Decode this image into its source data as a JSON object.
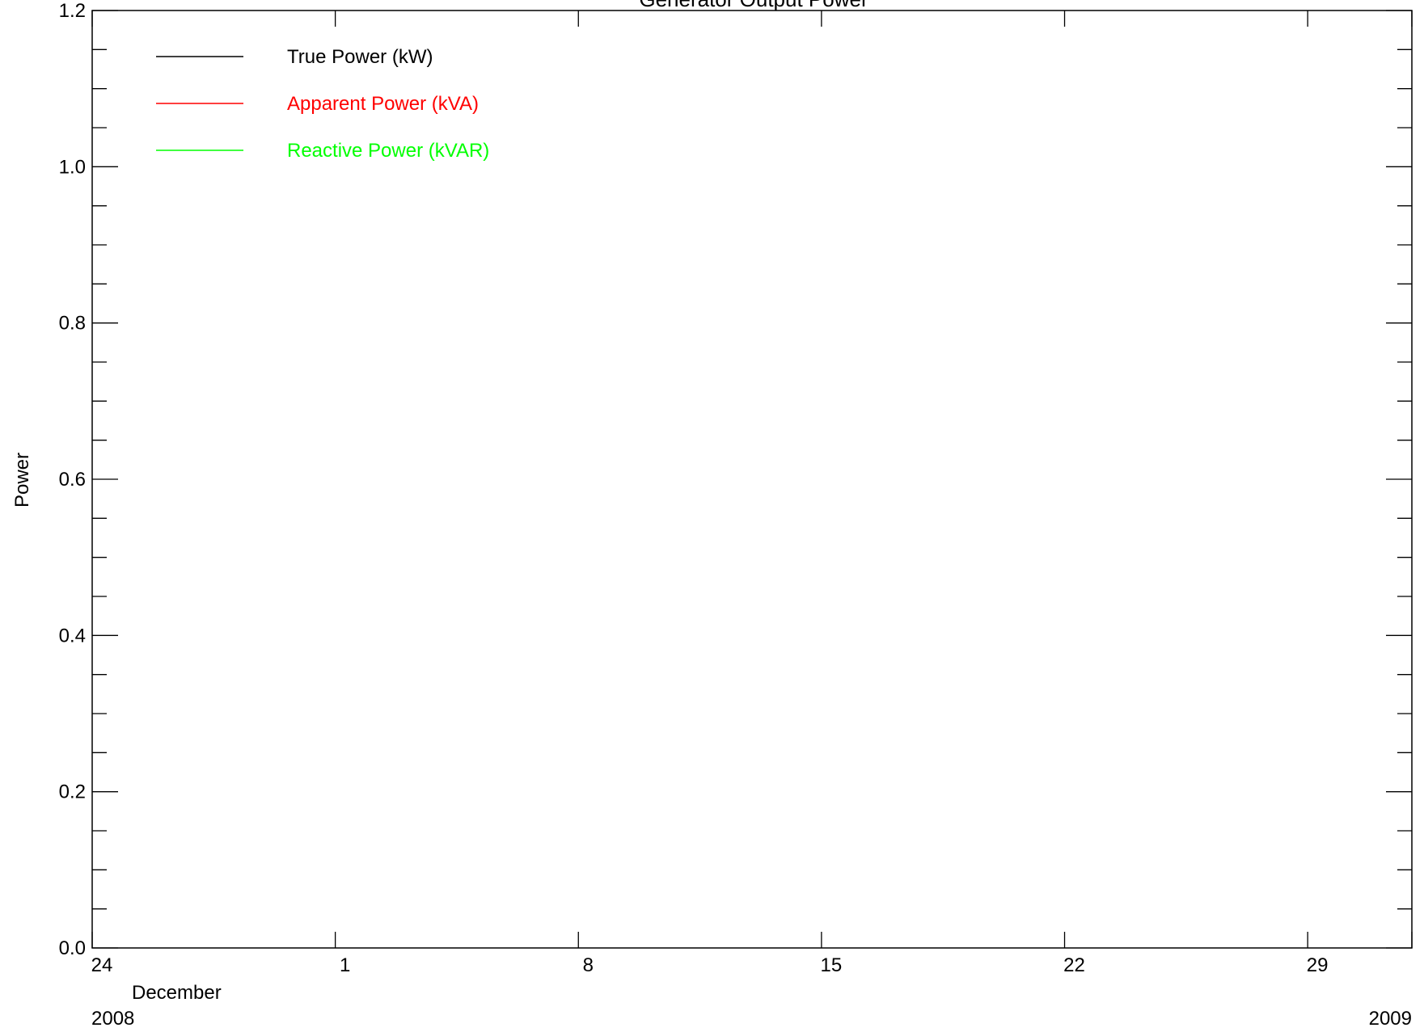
{
  "chart_data": {
    "type": "line",
    "title": "Generator Output Power",
    "ylabel": "Power",
    "xlabel": "",
    "ylim": [
      0.0,
      1.2
    ],
    "xlim": [
      "2008-11-24",
      "2009-01-01"
    ],
    "y_ticks": [
      "0.0",
      "0.2",
      "0.4",
      "0.6",
      "0.8",
      "1.0",
      "1.2"
    ],
    "x_ticks": [
      {
        "date": "2008-11-24",
        "label": "24"
      },
      {
        "date": "2008-12-01",
        "label": "1"
      },
      {
        "date": "2008-12-08",
        "label": "8"
      },
      {
        "date": "2008-12-15",
        "label": "15"
      },
      {
        "date": "2008-12-22",
        "label": "22"
      },
      {
        "date": "2008-12-29",
        "label": "29"
      }
    ],
    "month_label": "December",
    "year_labels": {
      "start": "2008",
      "end": "2009"
    },
    "grid": false,
    "legend_position": "top-left",
    "series": [
      {
        "name": "True Power (kW)",
        "color": "#000000",
        "values": []
      },
      {
        "name": "Apparent Power (kVA)",
        "color": "#ff0000",
        "values": []
      },
      {
        "name": "Reactive Power (kVAR)",
        "color": "#00ff00",
        "values": []
      }
    ]
  }
}
